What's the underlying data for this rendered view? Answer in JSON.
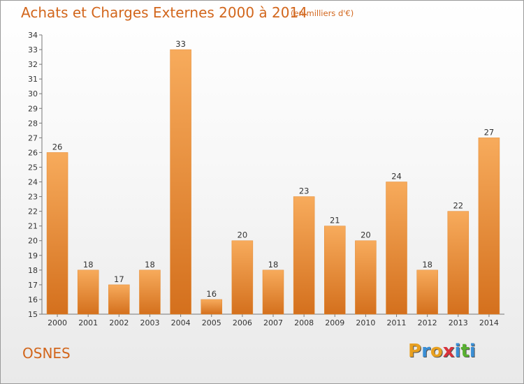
{
  "title": "Achats et Charges Externes 2000 à 2014",
  "subtitle": "(en milliers d'€)",
  "commune": "OSNES",
  "logo": {
    "text": "Proxiti",
    "letters": [
      {
        "ch": "P",
        "color": "#e8a020"
      },
      {
        "ch": "r",
        "color": "#3a8fd6"
      },
      {
        "ch": "o",
        "color": "#e8a020"
      },
      {
        "ch": "x",
        "color": "#d8323c"
      },
      {
        "ch": "i",
        "color": "#3a8fd6"
      },
      {
        "ch": "t",
        "color": "#58b030"
      },
      {
        "ch": "i",
        "color": "#3a8fd6"
      }
    ]
  },
  "colors": {
    "accent": "#d2661c",
    "bar_light": "#f6a95a",
    "bar_dark": "#d9731f"
  },
  "chart_data": {
    "type": "bar",
    "title": "Achats et Charges Externes 2000 à 2014",
    "subtitle": "(en milliers d'€)",
    "categories": [
      "2000",
      "2001",
      "2002",
      "2003",
      "2004",
      "2005",
      "2006",
      "2007",
      "2008",
      "2009",
      "2010",
      "2011",
      "2012",
      "2013",
      "2014"
    ],
    "values": [
      26,
      18,
      17,
      18,
      33,
      16,
      20,
      18,
      23,
      21,
      20,
      24,
      18,
      22,
      27
    ],
    "xlabel": "",
    "ylabel": "",
    "ylim": [
      15,
      34
    ],
    "yticks": [
      15,
      16,
      17,
      18,
      19,
      20,
      21,
      22,
      23,
      24,
      25,
      26,
      27,
      28,
      29,
      30,
      31,
      32,
      33,
      34
    ],
    "grid": false,
    "legend": "none"
  }
}
